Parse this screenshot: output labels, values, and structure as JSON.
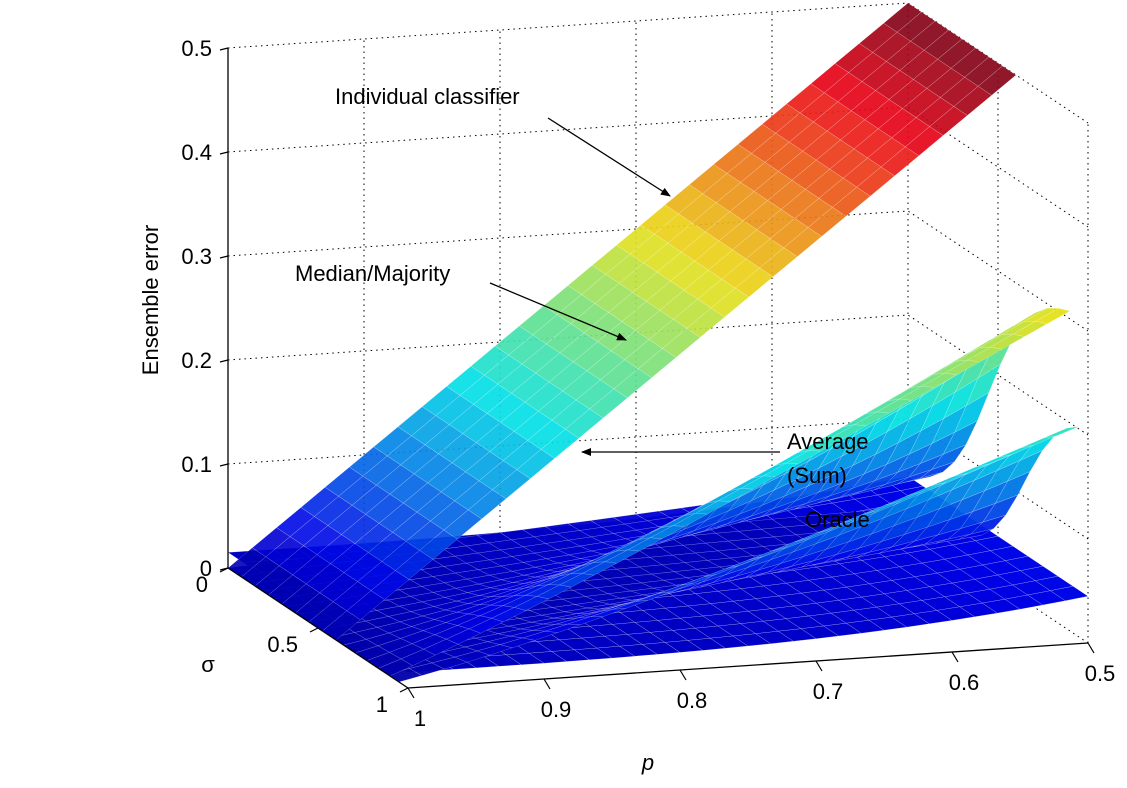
{
  "chart_data": {
    "type": "surface",
    "xlabel": "p",
    "ylabel": "σ",
    "zlabel": "Ensemble error",
    "x_ticks": [
      "0.5",
      "0.6",
      "0.7",
      "0.8",
      "0.9",
      "1"
    ],
    "y_ticks": [
      "0",
      "0.5",
      "1"
    ],
    "z_ticks": [
      "0",
      "0.1",
      "0.2",
      "0.3",
      "0.4",
      "0.5"
    ],
    "xlim": [
      0.5,
      1.0
    ],
    "ylim": [
      0,
      1
    ],
    "zlim": [
      0,
      0.5
    ],
    "grid": true,
    "colormap": "jet",
    "annotations": [
      {
        "text": "Individual classifier"
      },
      {
        "text": "Median/Majority"
      },
      {
        "text": "Average"
      },
      {
        "text": "(Sum)"
      },
      {
        "text": "Oracle"
      }
    ],
    "series": [
      {
        "name": "Individual classifier",
        "description_values": {
          "p": [
            1.0,
            0.9,
            0.8,
            0.7,
            0.6,
            0.5
          ],
          "error": [
            0.0,
            0.1,
            0.2,
            0.3,
            0.4,
            0.5
          ]
        }
      },
      {
        "name": "Median/Majority",
        "description_values": {
          "p": [
            1.0,
            0.9,
            0.8,
            0.7,
            0.6,
            0.5
          ],
          "error_at_sigma_0": [
            0.0,
            0.0,
            0.0,
            0.0,
            0.0,
            0.5
          ]
        }
      },
      {
        "name": "Average (Sum)",
        "description_values": {
          "p": [
            1.0,
            0.9,
            0.8,
            0.7,
            0.6,
            0.5
          ],
          "error_at_sigma_0": [
            0.0,
            0.0,
            0.0,
            0.0,
            0.0,
            0.5
          ]
        }
      },
      {
        "name": "Oracle",
        "description_values": {
          "p": [
            1.0,
            0.5
          ],
          "error": [
            0.0,
            0.0
          ]
        }
      }
    ]
  }
}
